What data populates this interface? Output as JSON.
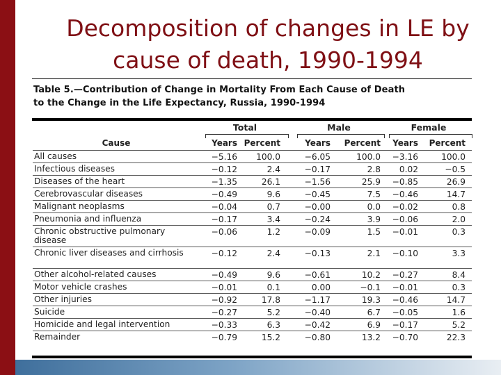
{
  "slide": {
    "title_line1": "Decomposition of changes in LE by",
    "title_line2": "cause of death, 1990-1994"
  },
  "table": {
    "caption_line1": "Table 5.—Contribution of Change in Mortality From Each Cause of Death",
    "caption_line2": "to the Change in the Life Expectancy, Russia, 1990-1994",
    "group_headers": [
      "Total",
      "Male",
      "Female"
    ],
    "column_headers": [
      "Cause",
      "Years",
      "Percent",
      "Years",
      "Percent",
      "Years",
      "Percent"
    ],
    "rows": [
      {
        "cause": "All causes",
        "values": [
          "−5.16",
          "100.0",
          "−6.05",
          "100.0",
          "−3.16",
          "100.0"
        ]
      },
      {
        "cause": "Infectious diseases",
        "values": [
          "−0.12",
          "2.4",
          "−0.17",
          "2.8",
          "0.02",
          "−0.5"
        ]
      },
      {
        "cause": "Diseases of the heart",
        "values": [
          "−1.35",
          "26.1",
          "−1.56",
          "25.9",
          "−0.85",
          "26.9"
        ]
      },
      {
        "cause": "Cerebrovascular diseases",
        "values": [
          "−0.49",
          "9.6",
          "−0.45",
          "7.5",
          "−0.46",
          "14.7"
        ]
      },
      {
        "cause": "Malignant neoplasms",
        "values": [
          "−0.04",
          "0.7",
          "−0.00",
          "0.0",
          "−0.02",
          "0.8"
        ]
      },
      {
        "cause": "Pneumonia and influenza",
        "values": [
          "−0.17",
          "3.4",
          "−0.24",
          "3.9",
          "−0.06",
          "2.0"
        ]
      },
      {
        "cause": "Chronic obstructive pulmonary disease",
        "values": [
          "−0.06",
          "1.2",
          "−0.09",
          "1.5",
          "−0.01",
          "0.3"
        ]
      },
      {
        "cause": "Chronic liver diseases and cirrhosis",
        "values": [
          "−0.12",
          "2.4",
          "−0.13",
          "2.1",
          "−0.10",
          "3.3"
        ]
      },
      {
        "cause": "Other alcohol-related causes",
        "values": [
          "−0.49",
          "9.6",
          "−0.61",
          "10.2",
          "−0.27",
          "8.4"
        ]
      },
      {
        "cause": "Motor vehicle crashes",
        "values": [
          "−0.01",
          "0.1",
          "0.00",
          "−0.1",
          "−0.01",
          "0.3"
        ]
      },
      {
        "cause": "Other injuries",
        "values": [
          "−0.92",
          "17.8",
          "−1.17",
          "19.3",
          "−0.46",
          "14.7"
        ]
      },
      {
        "cause": "Suicide",
        "values": [
          "−0.27",
          "5.2",
          "−0.40",
          "6.7",
          "−0.05",
          "1.6"
        ]
      },
      {
        "cause": "Homicide and legal intervention",
        "values": [
          "−0.33",
          "6.3",
          "−0.42",
          "6.9",
          "−0.17",
          "5.2"
        ]
      },
      {
        "cause": "Remainder",
        "values": [
          "−0.79",
          "15.2",
          "−0.80",
          "13.2",
          "−0.70",
          "22.3"
        ]
      }
    ]
  },
  "colors": {
    "accent_bar": "#8b0f14",
    "title_text": "#7f0f14",
    "footer_gradient_start": "#3f6f9c"
  }
}
